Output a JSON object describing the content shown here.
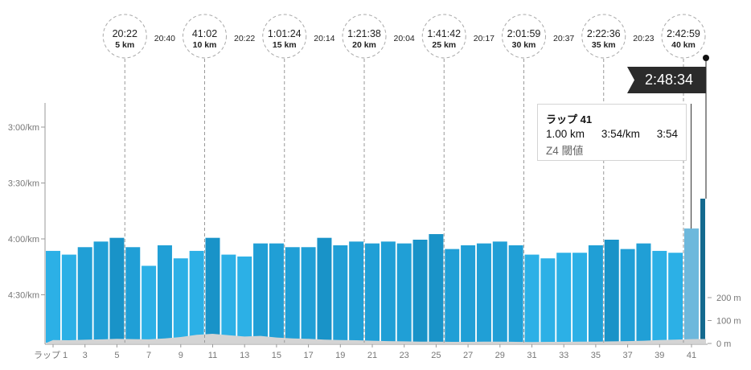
{
  "chart_data": {
    "type": "bar",
    "xlabel": "",
    "ylabel": "",
    "x_tick_prefix": "ラップ",
    "categories": [
      1,
      2,
      3,
      4,
      5,
      6,
      7,
      8,
      9,
      10,
      11,
      12,
      13,
      14,
      15,
      16,
      17,
      18,
      19,
      20,
      21,
      22,
      23,
      24,
      25,
      26,
      27,
      28,
      29,
      30,
      31,
      32,
      33,
      34,
      35,
      36,
      37,
      38,
      39,
      40,
      41,
      42
    ],
    "x_tick_labels": [
      "ラップ 1",
      "3",
      "5",
      "7",
      "9",
      "11",
      "13",
      "15",
      "17",
      "19",
      "21",
      "23",
      "25",
      "27",
      "29",
      "31",
      "33",
      "35",
      "37",
      "39",
      "41"
    ],
    "series": [
      {
        "values": [
          "4:06",
          "4:08",
          "4:04",
          "4:01",
          "3:59",
          "4:04",
          "4:14",
          "4:03",
          "4:10",
          "4:06",
          "3:59",
          "4:08",
          "4:09",
          "4:02",
          "4:02",
          "4:04",
          "4:04",
          "3:59",
          "4:03",
          "4:01",
          "4:02",
          "4:01",
          "4:02",
          "4:00",
          "3:57",
          "4:05",
          "4:03",
          "4:02",
          "4:01",
          "4:03",
          "4:08",
          "4:10",
          "4:07",
          "4:07",
          "4:03",
          "4:00",
          "4:05",
          "4:02",
          "4:06",
          "4:07",
          "3:54",
          "3:38"
        ]
      }
    ],
    "y_axis": {
      "ticks": [
        "3:00/km",
        "3:30/km",
        "4:00/km",
        "4:30/km"
      ],
      "reversed": true,
      "ylim": [
        "2:47",
        "4:55"
      ],
      "grid": false
    },
    "elevation": {
      "ticks": [
        "200 m",
        "100 m",
        "0 m"
      ],
      "values_m": [
        15,
        14,
        16,
        18,
        20,
        19,
        18,
        22,
        28,
        38,
        42,
        36,
        30,
        33,
        26,
        22,
        20,
        17,
        15,
        14,
        12,
        10,
        9,
        8,
        8,
        7,
        7,
        8,
        8,
        7,
        6,
        7,
        7,
        8,
        8,
        9,
        10,
        12,
        15,
        17,
        19,
        20
      ],
      "ylim_m": [
        0,
        200
      ]
    },
    "highlight_lap": 41,
    "colors": {
      "fast": "#1993c8",
      "normal": "#209fd6",
      "slow": "#2cb0e6",
      "highlight": "#6db8dc",
      "current": "#146a8f",
      "elevation": "#d4d4d4"
    },
    "markers": [
      {
        "time": "20:22",
        "dist": "5 km",
        "lap": 5
      },
      {
        "time": "41:02",
        "dist": "10 km",
        "lap": 10
      },
      {
        "time": "1:01:24",
        "dist": "15 km",
        "lap": 15
      },
      {
        "time": "1:21:38",
        "dist": "20 km",
        "lap": 20
      },
      {
        "time": "1:41:42",
        "dist": "25 km",
        "lap": 25
      },
      {
        "time": "2:01:59",
        "dist": "30 km",
        "lap": 30
      },
      {
        "time": "2:22:36",
        "dist": "35 km",
        "lap": 35
      },
      {
        "time": "2:42:59",
        "dist": "40 km",
        "lap": 40
      }
    ],
    "splits": [
      "20:40",
      "20:22",
      "20:14",
      "20:04",
      "20:17",
      "20:37",
      "20:23"
    ]
  },
  "flag": {
    "finish_time": "2:48:34"
  },
  "tooltip": {
    "title": "ラップ 41",
    "distance": "1.00 km",
    "pace": "3:54/km",
    "time": "3:54",
    "zone": "Z4 閾値"
  }
}
